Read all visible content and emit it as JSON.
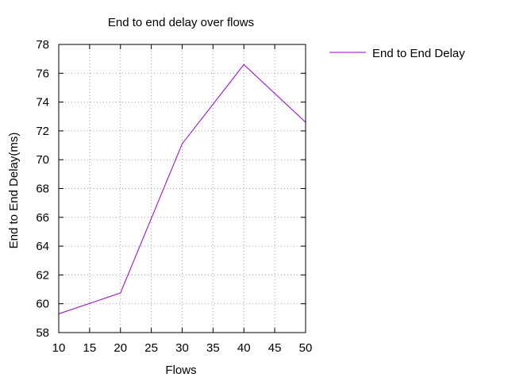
{
  "chart_data": {
    "type": "line",
    "title": "End to end delay over flows",
    "xlabel": "Flows",
    "ylabel": "End to End Delay(ms)",
    "x": [
      10,
      20,
      30,
      40,
      50
    ],
    "series": [
      {
        "name": "End to End Delay",
        "color": "#9400d3",
        "values": [
          59.3,
          60.75,
          71.1,
          76.6,
          72.6
        ]
      }
    ],
    "xlim": [
      10,
      50
    ],
    "ylim": [
      58,
      78
    ],
    "xticks": [
      10,
      15,
      20,
      25,
      30,
      35,
      40,
      45,
      50
    ],
    "yticks": [
      58,
      60,
      62,
      64,
      66,
      68,
      70,
      72,
      74,
      76,
      78
    ],
    "grid": true,
    "grid_style": "dotted",
    "legend_position": "top-right outside"
  }
}
